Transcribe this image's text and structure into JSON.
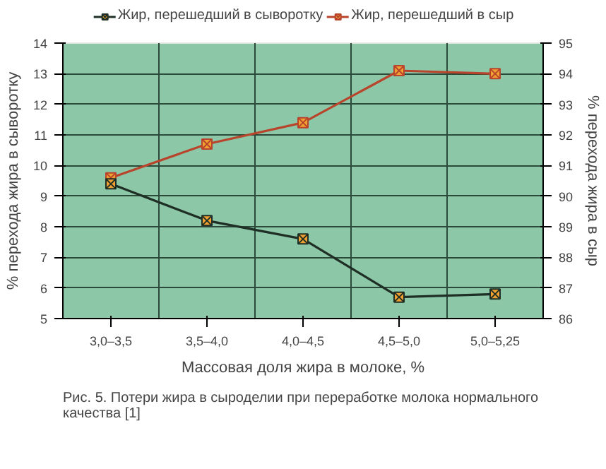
{
  "chart_data": {
    "type": "line",
    "xlabel": "Массовая доля жира в молоке, %",
    "ylabel": "% перехода жира в сыворотку",
    "y2label": "% перехода жира в сыр",
    "categories": [
      "3,0–3,5",
      "3,5–4,0",
      "4,0–4,5",
      "4,5–5,0",
      "5,0–5,25"
    ],
    "series": [
      {
        "name": "Жир, перешедший в сыворотку",
        "color": "#1f2f25",
        "values": [
          9.4,
          8.2,
          7.6,
          5.7,
          5.8
        ]
      },
      {
        "name": "Жир, перешедший в сыр",
        "color": "#b8442c",
        "axis": "y2",
        "values": [
          90.6,
          91.7,
          92.4,
          94.1,
          94.0
        ]
      }
    ],
    "ylim": [
      5,
      14
    ],
    "yticks": [
      5,
      6,
      7,
      8,
      9,
      10,
      11,
      12,
      13,
      14
    ],
    "y2lim": [
      86,
      95
    ],
    "y2ticks": [
      86,
      87,
      88,
      89,
      90,
      91,
      92,
      93,
      94,
      95
    ],
    "grid": true,
    "legend": "top",
    "marker": "cross",
    "annotations": [
      "Рис. 5. Потери жира в сыроделии при переработке молока нормального качества [1]"
    ]
  }
}
